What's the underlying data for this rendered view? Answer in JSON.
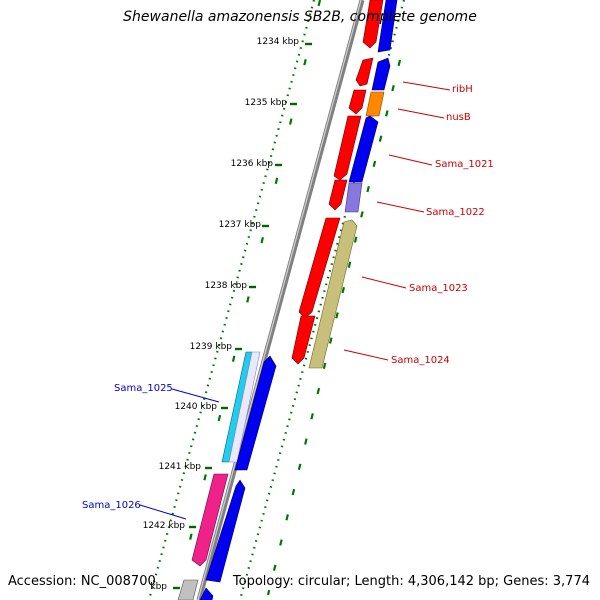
{
  "title": "Shewanella amazonensis SB2B, complete genome",
  "accession": "Accession: NC_008700",
  "topology": "Topology: circular; Length: 4,306,142 bp; Genes: 3,774",
  "ruler_labels": [
    "1234 kbp",
    "1235 kbp",
    "1236 kbp",
    "1237 kbp",
    "1238 kbp",
    "1239 kbp",
    "1240 kbp",
    "1241 kbp",
    "1242 kbp",
    "kbp"
  ],
  "gene_labels": [
    {
      "text": "ribH",
      "color": "#cc0000"
    },
    {
      "text": "nusB",
      "color": "#cc0000"
    },
    {
      "text": "Sama_1021",
      "color": "#cc0000"
    },
    {
      "text": "Sama_1022",
      "color": "#cc0000"
    },
    {
      "text": "Sama_1023",
      "color": "#cc0000"
    },
    {
      "text": "Sama_1024",
      "color": "#cc0000"
    },
    {
      "text": "Sama_1025",
      "color": "#0000cc"
    },
    {
      "text": "Sama_1026",
      "color": "#0000cc"
    }
  ],
  "colors": {
    "red_gene": "#ff0000",
    "blue_gene": "#0000ee",
    "orange_gene": "#ff8800",
    "lavender_gene": "#8877dd",
    "olive_gene": "#c8c07a",
    "cyan_gene": "#22ccee",
    "pink_gene": "#ee2288",
    "gray_gene": "#c0c0c0",
    "tick": "#006600",
    "backbone": "#888888"
  }
}
